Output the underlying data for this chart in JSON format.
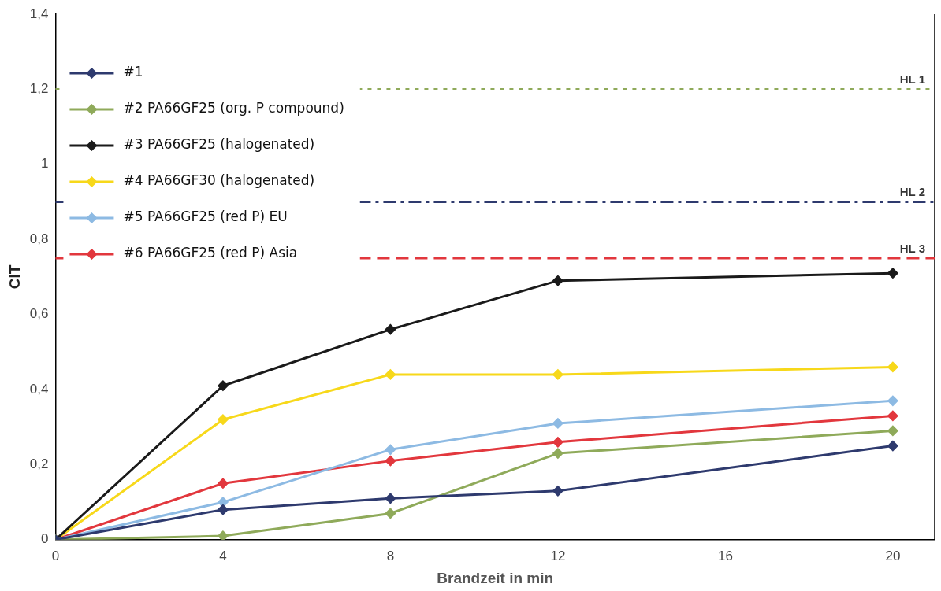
{
  "chart_data": {
    "type": "line",
    "xlabel": "Brandzeit in min",
    "ylabel": "CIT",
    "x": [
      0,
      4,
      8,
      12,
      20
    ],
    "series": [
      {
        "name": "#1",
        "color": "#2e3a6e",
        "values": [
          0,
          0.08,
          0.11,
          0.13,
          0.25
        ]
      },
      {
        "name": "#2 PA66GF25 (org. P compound)",
        "color": "#8faa5a",
        "values": [
          0,
          0.01,
          0.07,
          0.23,
          0.29
        ]
      },
      {
        "name": "#3 PA66GF25 (halogenated)",
        "color": "#1a1a1a",
        "values": [
          0,
          0.41,
          0.56,
          0.69,
          0.71
        ]
      },
      {
        "name": "#4 PA66GF30 (halogenated)",
        "color": "#f7d81a",
        "values": [
          0,
          0.32,
          0.44,
          0.44,
          0.46
        ]
      },
      {
        "name": "#5 PA66GF25 (red P) EU",
        "color": "#8dbae3",
        "values": [
          0,
          0.1,
          0.24,
          0.31,
          0.37
        ]
      },
      {
        "name": "#6 PA66GF25 (red P) Asia",
        "color": "#e2373d",
        "values": [
          0,
          0.15,
          0.21,
          0.26,
          0.33
        ]
      }
    ],
    "xlim": [
      0,
      21
    ],
    "xticks": [
      0,
      4,
      8,
      12,
      16,
      20
    ],
    "ylim": [
      0,
      1.4
    ],
    "yticks": [
      0,
      {
        "value": 0.2,
        "label": "0,2"
      },
      {
        "value": 0.4,
        "label": "0,4"
      },
      {
        "value": 0.6,
        "label": "0,6"
      },
      {
        "value": 0.8,
        "label": "0,8"
      },
      1,
      {
        "value": 1.2,
        "label": "1,2"
      },
      {
        "value": 1.4,
        "label": "1,4"
      }
    ],
    "ref_lines": [
      {
        "axis": "y",
        "value": 1.2,
        "label": "HL 1",
        "color": "#8faa5a",
        "line_style": "dotted"
      },
      {
        "axis": "y",
        "value": 0.9,
        "label": "HL 2",
        "color": "#2e3a6e",
        "line_style": "dashdot"
      },
      {
        "axis": "y",
        "value": 0.75,
        "label": "HL 3",
        "color": "#e2373d",
        "line_style": "dashed"
      }
    ],
    "grid": false,
    "legend": "top left",
    "marker": "diamond",
    "line_style": "solid"
  }
}
